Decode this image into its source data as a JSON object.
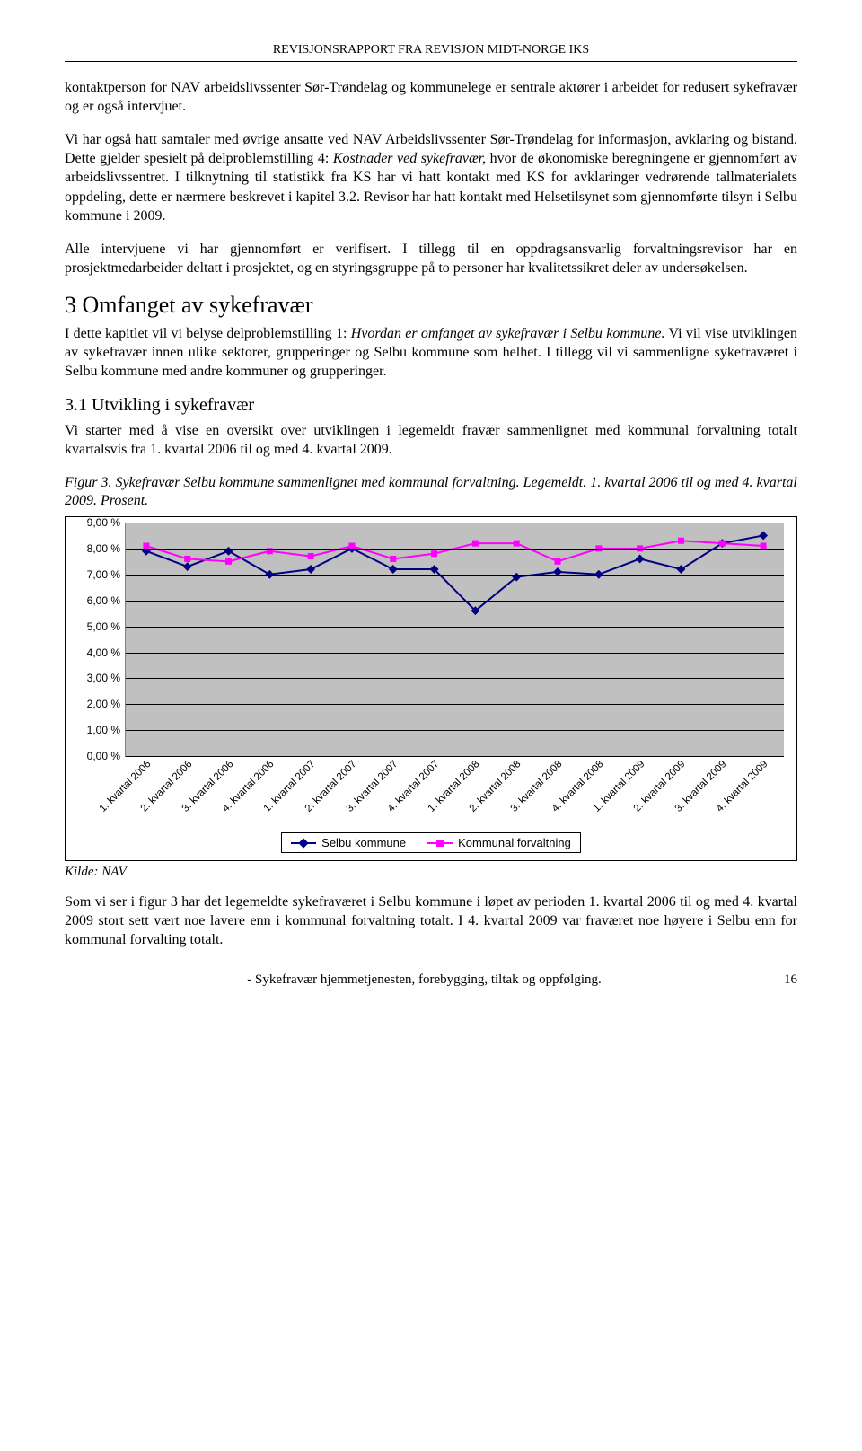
{
  "header": "REVISJONSRAPPORT FRA REVISJON MIDT-NORGE IKS",
  "p1a": "kontaktperson for NAV arbeidslivssenter Sør-Trøndelag og kommunelege er sentrale aktører i arbeidet for redusert sykefravær og er også intervjuet.",
  "p2a": "Vi har også hatt samtaler med øvrige ansatte ved NAV Arbeidslivssenter Sør-Trøndelag for informasjon, avklaring og bistand. Dette gjelder spesielt på delproblemstilling 4: ",
  "p2i": "Kostnader ved sykefravær,",
  "p2b": " hvor de økonomiske beregningene er gjennomført av arbeidslivssentret. I tilknytning til statistikk fra KS har vi hatt kontakt med KS for avklaringer vedrørende tallmaterialets oppdeling, dette er nærmere beskrevet i kapitel 3.2. Revisor har hatt kontakt med Helsetilsynet som gjennomførte tilsyn i Selbu kommune i 2009.",
  "p3": "Alle intervjuene vi har gjennomført er verifisert. I tillegg til en oppdragsansvarlig forvaltningsrevisor har en prosjektmedarbeider deltatt i prosjektet, og en styringsgruppe på to personer har kvalitetssikret deler av undersøkelsen.",
  "h1": "3   Omfanget av sykefravær",
  "p4a": "I dette kapitlet vil vi belyse delproblemstilling 1: ",
  "p4i": "Hvordan er omfanget av sykefravær i Selbu kommune.",
  "p4b": " Vi vil vise utviklingen av sykefravær innen ulike sektorer, grupperinger og Selbu kommune som helhet. I tillegg vil vi sammenligne sykefraværet i Selbu kommune med andre kommuner og grupperinger.",
  "h2": "3.1   Utvikling i sykefravær",
  "p5": "Vi starter med å vise en oversikt over utviklingen i legemeldt fravær sammenlignet med kommunal forvaltning totalt kvartalsvis fra 1. kvartal 2006 til og med 4. kvartal 2009.",
  "figcap": "Figur 3. Sykefravær Selbu kommune sammenlignet med kommunal forvaltning. Legemeldt. 1. kvartal 2006 til og med 4. kvartal 2009. Prosent.",
  "kilde": "Kilde: NAV",
  "p6": "Som vi ser i figur 3 har det legemeldte sykefraværet i Selbu kommune i løpet av perioden 1. kvartal 2006 til og med 4. kvartal 2009 stort sett vært noe lavere enn i kommunal forvaltning totalt. I 4. kvartal 2009 var fraværet noe høyere i Selbu enn for kommunal forvalting totalt.",
  "footer_text": "- Sykefravær hjemmetjenesten, forebygging, tiltak og oppfølging.",
  "footer_page": "16",
  "chart": {
    "type": "line",
    "background_color": "#c0c0c0",
    "grid_color": "#000000",
    "ylim": [
      0,
      9
    ],
    "ytick_step": 1,
    "ytick_labels": [
      "0,00 %",
      "1,00 %",
      "2,00 %",
      "3,00 %",
      "4,00 %",
      "5,00 %",
      "6,00 %",
      "7,00 %",
      "8,00 %",
      "9,00 %"
    ],
    "categories": [
      "1. kvartal 2006",
      "2. kvartal 2006",
      "3. kvartal 2006",
      "4. kvartal 2006",
      "1. kvartal 2007",
      "2. kvartal 2007",
      "3. kvartal 2007",
      "4. kvartal 2007",
      "1. kvartal 2008",
      "2. kvartal 2008",
      "3. kvartal 2008",
      "4. kvartal 2008",
      "1. kvartal 2009",
      "2. kvartal 2009",
      "3. kvartal 2009",
      "4. kvartal 2009"
    ],
    "series": [
      {
        "name": "Selbu kommune",
        "color": "#000080",
        "marker": "diamond",
        "values": [
          7.9,
          7.3,
          7.9,
          7.0,
          7.2,
          8.0,
          7.2,
          7.2,
          5.6,
          6.9,
          7.1,
          7.0,
          7.6,
          7.2,
          8.2,
          8.5
        ]
      },
      {
        "name": "Kommunal forvaltning",
        "color": "#ff00ff",
        "marker": "square",
        "values": [
          8.1,
          7.6,
          7.5,
          7.9,
          7.7,
          8.1,
          7.6,
          7.8,
          8.2,
          8.2,
          7.5,
          8.0,
          8.0,
          8.3,
          8.2,
          8.1
        ]
      }
    ],
    "legend_labels": [
      "Selbu kommune",
      "Kommunal forvaltning"
    ]
  }
}
